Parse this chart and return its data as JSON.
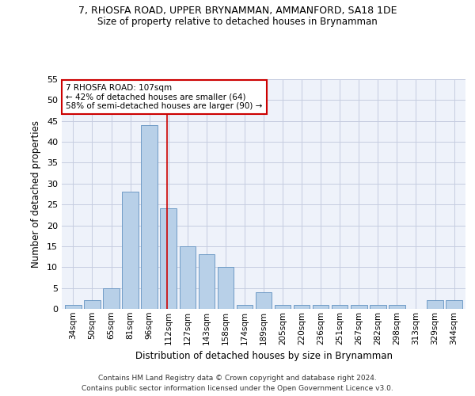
{
  "title1": "7, RHOSFA ROAD, UPPER BRYNAMMAN, AMMANFORD, SA18 1DE",
  "title2": "Size of property relative to detached houses in Brynamman",
  "xlabel": "Distribution of detached houses by size in Brynamman",
  "ylabel": "Number of detached properties",
  "categories": [
    "34sqm",
    "50sqm",
    "65sqm",
    "81sqm",
    "96sqm",
    "112sqm",
    "127sqm",
    "143sqm",
    "158sqm",
    "174sqm",
    "189sqm",
    "205sqm",
    "220sqm",
    "236sqm",
    "251sqm",
    "267sqm",
    "282sqm",
    "298sqm",
    "313sqm",
    "329sqm",
    "344sqm"
  ],
  "values": [
    1,
    2,
    5,
    28,
    44,
    24,
    15,
    13,
    10,
    1,
    4,
    1,
    1,
    1,
    1,
    1,
    1,
    1,
    0,
    2,
    2
  ],
  "bar_color": "#b8d0e8",
  "bar_edge_color": "#6090c0",
  "vline_index": 5,
  "vline_color": "#cc0000",
  "annotation_line1": "7 RHOSFA ROAD: 107sqm",
  "annotation_line2": "← 42% of detached houses are smaller (64)",
  "annotation_line3": "58% of semi-detached houses are larger (90) →",
  "annotation_box_color": "#ffffff",
  "annotation_box_edge": "#cc0000",
  "ylim": [
    0,
    55
  ],
  "yticks": [
    0,
    5,
    10,
    15,
    20,
    25,
    30,
    35,
    40,
    45,
    50,
    55
  ],
  "footnote1": "Contains HM Land Registry data © Crown copyright and database right 2024.",
  "footnote2": "Contains public sector information licensed under the Open Government Licence v3.0.",
  "bg_color": "#eef2fa",
  "grid_color": "#c5cce0"
}
